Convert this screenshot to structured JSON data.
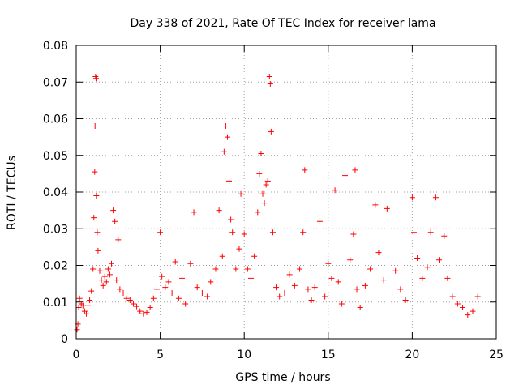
{
  "chart_data": {
    "type": "scatter",
    "title": "Day 338 of 2021, Rate Of TEC Index for receiver lama",
    "xlabel": "GPS time / hours",
    "ylabel": "ROTI / TECUs",
    "xlim": [
      0,
      25
    ],
    "ylim": [
      0,
      0.08
    ],
    "xticks": [
      0,
      5,
      10,
      15,
      20,
      25
    ],
    "yticks": [
      0,
      0.01,
      0.02,
      0.03,
      0.04,
      0.05,
      0.06,
      0.07,
      0.08
    ],
    "xtick_labels": [
      "0",
      "5",
      "10",
      "15",
      "20",
      "25"
    ],
    "ytick_labels": [
      "0",
      "0.01",
      "0.02",
      "0.03",
      "0.04",
      "0.05",
      "0.06",
      "0.07",
      "0.08"
    ],
    "grid": true,
    "marker": "+",
    "color": "#ff0000",
    "series": [
      {
        "points": [
          [
            0.05,
            0.0025
          ],
          [
            0.1,
            0.004
          ],
          [
            0.15,
            0.0085
          ],
          [
            0.2,
            0.011
          ],
          [
            0.3,
            0.0095
          ],
          [
            0.4,
            0.009
          ],
          [
            0.5,
            0.0075
          ],
          [
            0.6,
            0.0068
          ],
          [
            0.7,
            0.009
          ],
          [
            0.8,
            0.0105
          ],
          [
            0.9,
            0.013
          ],
          [
            1.0,
            0.019
          ],
          [
            1.05,
            0.033
          ],
          [
            1.1,
            0.0455
          ],
          [
            1.12,
            0.058
          ],
          [
            1.15,
            0.0715
          ],
          [
            1.18,
            0.071
          ],
          [
            1.2,
            0.039
          ],
          [
            1.25,
            0.029
          ],
          [
            1.3,
            0.024
          ],
          [
            1.4,
            0.0185
          ],
          [
            1.5,
            0.016
          ],
          [
            1.6,
            0.0145
          ],
          [
            1.7,
            0.017
          ],
          [
            1.8,
            0.0155
          ],
          [
            1.9,
            0.019
          ],
          [
            2.0,
            0.0175
          ],
          [
            2.1,
            0.0205
          ],
          [
            2.2,
            0.035
          ],
          [
            2.3,
            0.032
          ],
          [
            2.4,
            0.016
          ],
          [
            2.5,
            0.027
          ],
          [
            2.6,
            0.0135
          ],
          [
            2.8,
            0.0125
          ],
          [
            3.0,
            0.011
          ],
          [
            3.2,
            0.0105
          ],
          [
            3.4,
            0.0095
          ],
          [
            3.6,
            0.0088
          ],
          [
            3.8,
            0.0075
          ],
          [
            4.0,
            0.0068
          ],
          [
            4.2,
            0.0072
          ],
          [
            4.4,
            0.0085
          ],
          [
            4.6,
            0.011
          ],
          [
            4.8,
            0.0135
          ],
          [
            5.0,
            0.029
          ],
          [
            5.1,
            0.017
          ],
          [
            5.3,
            0.014
          ],
          [
            5.5,
            0.0155
          ],
          [
            5.7,
            0.0125
          ],
          [
            5.9,
            0.021
          ],
          [
            6.1,
            0.011
          ],
          [
            6.3,
            0.0165
          ],
          [
            6.5,
            0.0095
          ],
          [
            6.8,
            0.0205
          ],
          [
            7.0,
            0.0345
          ],
          [
            7.2,
            0.014
          ],
          [
            7.5,
            0.0125
          ],
          [
            7.8,
            0.0115
          ],
          [
            8.0,
            0.0155
          ],
          [
            8.3,
            0.019
          ],
          [
            8.5,
            0.035
          ],
          [
            8.7,
            0.0225
          ],
          [
            8.8,
            0.051
          ],
          [
            8.9,
            0.058
          ],
          [
            9.0,
            0.055
          ],
          [
            9.1,
            0.043
          ],
          [
            9.2,
            0.0325
          ],
          [
            9.3,
            0.029
          ],
          [
            9.5,
            0.019
          ],
          [
            9.7,
            0.0245
          ],
          [
            9.8,
            0.0395
          ],
          [
            10.0,
            0.0285
          ],
          [
            10.2,
            0.019
          ],
          [
            10.4,
            0.0165
          ],
          [
            10.6,
            0.0225
          ],
          [
            10.8,
            0.0345
          ],
          [
            10.9,
            0.045
          ],
          [
            11.0,
            0.0505
          ],
          [
            11.1,
            0.0395
          ],
          [
            11.2,
            0.037
          ],
          [
            11.3,
            0.042
          ],
          [
            11.4,
            0.043
          ],
          [
            11.5,
            0.0715
          ],
          [
            11.55,
            0.0695
          ],
          [
            11.6,
            0.0565
          ],
          [
            11.7,
            0.029
          ],
          [
            11.9,
            0.014
          ],
          [
            12.1,
            0.0115
          ],
          [
            12.4,
            0.0125
          ],
          [
            12.7,
            0.0175
          ],
          [
            13.0,
            0.0145
          ],
          [
            13.3,
            0.019
          ],
          [
            13.5,
            0.029
          ],
          [
            13.6,
            0.046
          ],
          [
            13.8,
            0.0135
          ],
          [
            14.0,
            0.0105
          ],
          [
            14.2,
            0.014
          ],
          [
            14.5,
            0.032
          ],
          [
            14.8,
            0.0115
          ],
          [
            15.0,
            0.0205
          ],
          [
            15.2,
            0.0165
          ],
          [
            15.4,
            0.0405
          ],
          [
            15.6,
            0.0155
          ],
          [
            15.8,
            0.0095
          ],
          [
            16.0,
            0.0445
          ],
          [
            16.3,
            0.0215
          ],
          [
            16.5,
            0.0285
          ],
          [
            16.6,
            0.046
          ],
          [
            16.7,
            0.0135
          ],
          [
            16.9,
            0.0085
          ],
          [
            17.2,
            0.0145
          ],
          [
            17.5,
            0.019
          ],
          [
            17.8,
            0.0365
          ],
          [
            18.0,
            0.0235
          ],
          [
            18.3,
            0.016
          ],
          [
            18.5,
            0.0355
          ],
          [
            18.8,
            0.0125
          ],
          [
            19.0,
            0.0185
          ],
          [
            19.3,
            0.0135
          ],
          [
            19.6,
            0.0105
          ],
          [
            20.0,
            0.0385
          ],
          [
            20.1,
            0.029
          ],
          [
            20.3,
            0.022
          ],
          [
            20.6,
            0.0165
          ],
          [
            20.9,
            0.0195
          ],
          [
            21.1,
            0.029
          ],
          [
            21.4,
            0.0385
          ],
          [
            21.6,
            0.0215
          ],
          [
            21.9,
            0.028
          ],
          [
            22.1,
            0.0165
          ],
          [
            22.4,
            0.0115
          ],
          [
            22.7,
            0.0095
          ],
          [
            23.0,
            0.0085
          ],
          [
            23.3,
            0.0065
          ],
          [
            23.6,
            0.0075
          ],
          [
            23.9,
            0.0115
          ]
        ]
      }
    ]
  }
}
